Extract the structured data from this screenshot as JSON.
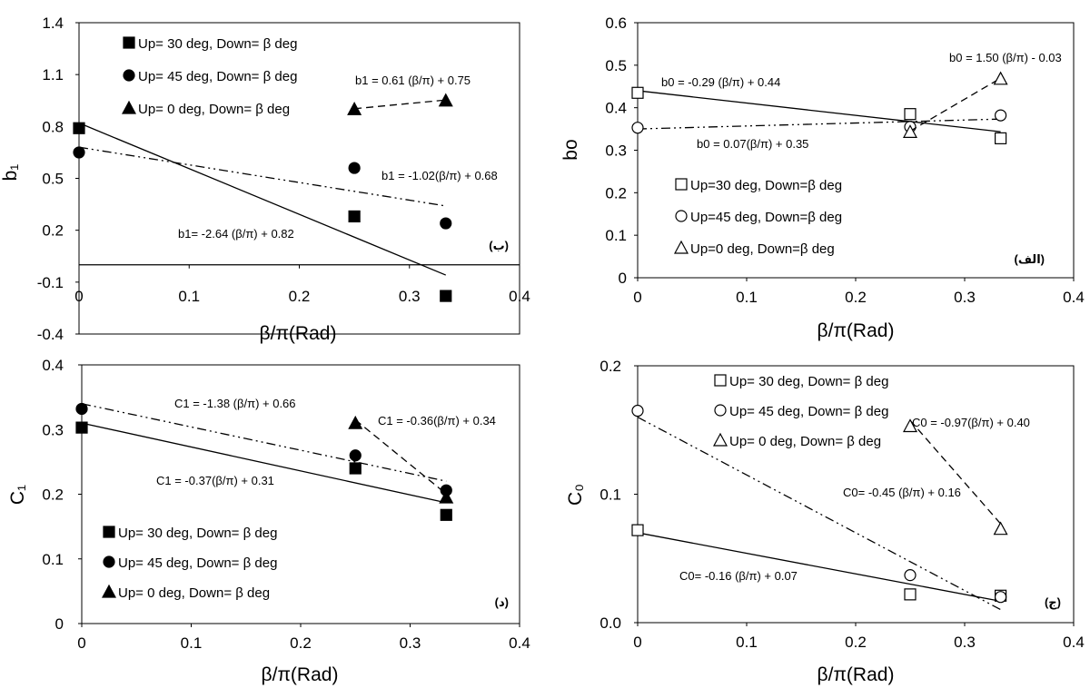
{
  "chart_data": [
    {
      "id": "b1",
      "type": "scatter",
      "panel_label": "(ب)",
      "ylabel": "b₁",
      "xlabel": "β/π(Rad)",
      "xlim": [
        0,
        0.4
      ],
      "ylim": [
        -0.4,
        1.4
      ],
      "x_ticks": [
        "0",
        "0.1",
        "0.2",
        "0.3",
        "0.4"
      ],
      "y_ticks": [
        "-0.4",
        "-0.1",
        "0.2",
        "0.5",
        "0.8",
        "1.1",
        "1.4"
      ],
      "legend_position": "top-left",
      "series": [
        {
          "name": "Up= 30 deg, Down= β deg",
          "marker": "square-filled",
          "x": [
            0,
            0.25,
            0.333
          ],
          "y": [
            0.79,
            0.28,
            -0.18
          ],
          "fit": {
            "label": "b1= -2.64 (β/π)  + 0.82",
            "slope": -2.64,
            "intercept": 0.82,
            "x": [
              0,
              0.333
            ],
            "style": "solid"
          }
        },
        {
          "name": "Up= 45 deg, Down= β deg",
          "marker": "circle-filled",
          "x": [
            0,
            0.25,
            0.333
          ],
          "y": [
            0.65,
            0.56,
            0.24
          ],
          "fit": {
            "label": "b1 = -1.02(β/π) + 0.68",
            "slope": -1.02,
            "intercept": 0.68,
            "x": [
              0,
              0.333
            ],
            "style": "dashdotdot"
          }
        },
        {
          "name": "Up= 0 deg, Down= β deg",
          "marker": "triangle-filled",
          "x": [
            0.25,
            0.333
          ],
          "y": [
            0.9,
            0.95
          ],
          "fit": {
            "label": "b1 = 0.61 (β/π) + 0.75",
            "slope": 0.61,
            "intercept": 0.75,
            "x": [
              0.25,
              0.333
            ],
            "style": "dashed"
          }
        }
      ]
    },
    {
      "id": "b0",
      "type": "scatter",
      "panel_label": "(الف)",
      "ylabel": "bo",
      "xlabel": "β/π(Rad)",
      "xlim": [
        0,
        0.4
      ],
      "ylim": [
        0,
        0.6
      ],
      "x_ticks": [
        "0",
        "0.1",
        "0.2",
        "0.3",
        "0.4"
      ],
      "y_ticks": [
        "0",
        "0.1",
        "0.2",
        "0.3",
        "0.4",
        "0.5",
        "0.6"
      ],
      "legend_position": "bottom-left",
      "series": [
        {
          "name": "Up=30 deg, Down=β deg",
          "marker": "square-open",
          "x": [
            0,
            0.25,
            0.333
          ],
          "y": [
            0.435,
            0.385,
            0.328
          ],
          "fit": {
            "label": "b0 = -0.29 (β/π) + 0.44",
            "slope": -0.29,
            "intercept": 0.44,
            "x": [
              0,
              0.333
            ],
            "style": "solid"
          }
        },
        {
          "name": "Up=45 deg, Down=β deg",
          "marker": "circle-open",
          "x": [
            0,
            0.25,
            0.333
          ],
          "y": [
            0.353,
            0.355,
            0.382
          ],
          "fit": {
            "label": "b0 = 0.07(β/π) + 0.35",
            "slope": 0.07,
            "intercept": 0.35,
            "x": [
              0,
              0.333
            ],
            "style": "dashdotdot"
          }
        },
        {
          "name": "Up=0 deg, Down=β deg",
          "marker": "triangle-open",
          "x": [
            0.25,
            0.333
          ],
          "y": [
            0.343,
            0.468
          ],
          "fit": {
            "label": "b0 = 1.50 (β/π) - 0.03",
            "slope": 1.5,
            "intercept": -0.03,
            "x": [
              0.25,
              0.333
            ],
            "style": "dashed"
          }
        }
      ]
    },
    {
      "id": "c1",
      "type": "scatter",
      "panel_label": "(د)",
      "ylabel": "C₁",
      "xlabel": "β/π(Rad)",
      "xlim": [
        0,
        0.4
      ],
      "ylim": [
        0,
        0.4
      ],
      "x_ticks": [
        "0",
        "0.1",
        "0.2",
        "0.3",
        "0.4"
      ],
      "y_ticks": [
        "0",
        "0.1",
        "0.2",
        "0.3",
        "0.4"
      ],
      "legend_position": "bottom-left",
      "series": [
        {
          "name": "Up= 30 deg, Down= β deg",
          "marker": "square-filled",
          "x": [
            0,
            0.25,
            0.333
          ],
          "y": [
            0.303,
            0.24,
            0.168
          ],
          "fit": {
            "label": "C1 = -0.37(β/π)  + 0.31",
            "slope": -0.37,
            "intercept": 0.31,
            "x": [
              0,
              0.333
            ],
            "style": "solid"
          }
        },
        {
          "name": "Up= 45 deg, Down= β deg",
          "marker": "circle-filled",
          "x": [
            0,
            0.25,
            0.333
          ],
          "y": [
            0.332,
            0.26,
            0.206
          ],
          "fit": {
            "label": "C1 = -0.36(β/π)  + 0.34",
            "slope": -0.36,
            "intercept": 0.34,
            "x": [
              0,
              0.333
            ],
            "style": "dashdotdot"
          }
        },
        {
          "name": "Up= 0 deg, Down= β deg",
          "marker": "triangle-filled",
          "x": [
            0.25,
            0.333
          ],
          "y": [
            0.31,
            0.195
          ],
          "fit": {
            "label": "C1 = -1.38 (β/π)  + 0.66",
            "slope": -1.38,
            "intercept": 0.66,
            "x": [
              0.25,
              0.333
            ],
            "style": "dashed"
          }
        }
      ]
    },
    {
      "id": "c0",
      "type": "scatter",
      "panel_label": "(ج)",
      "ylabel": "C₀",
      "xlabel": "β/π(Rad)",
      "xlim": [
        0,
        0.4
      ],
      "ylim": [
        0,
        0.2
      ],
      "x_ticks": [
        "0",
        "0.1",
        "0.2",
        "0.3",
        "0.4"
      ],
      "y_ticks": [
        "0.0",
        "0.1",
        "0.2"
      ],
      "legend_position": "top-left",
      "series": [
        {
          "name": "Up= 30 deg, Down= β deg",
          "marker": "square-open",
          "x": [
            0,
            0.25,
            0.333
          ],
          "y": [
            0.072,
            0.022,
            0.021
          ],
          "fit": {
            "label": "C0= -0.16 (β/π)  + 0.07",
            "slope": -0.16,
            "intercept": 0.07,
            "x": [
              0,
              0.333
            ],
            "style": "solid"
          }
        },
        {
          "name": "Up= 45 deg, Down= β deg",
          "marker": "circle-open",
          "x": [
            0,
            0.25,
            0.333
          ],
          "y": [
            0.165,
            0.037,
            0.02
          ],
          "fit": {
            "label": "C0= -0.45 (β/π)  + 0.16",
            "slope": -0.45,
            "intercept": 0.16,
            "x": [
              0,
              0.333
            ],
            "style": "dashdotdot"
          }
        },
        {
          "name": "Up= 0 deg, Down= β deg",
          "marker": "triangle-open",
          "x": [
            0.25,
            0.333
          ],
          "y": [
            0.153,
            0.073
          ],
          "fit": {
            "label": "C0 = -0.97(β/π)  + 0.40",
            "slope": -0.97,
            "intercept": 0.4,
            "x": [
              0.25,
              0.333
            ],
            "style": "dashed"
          }
        }
      ]
    }
  ]
}
